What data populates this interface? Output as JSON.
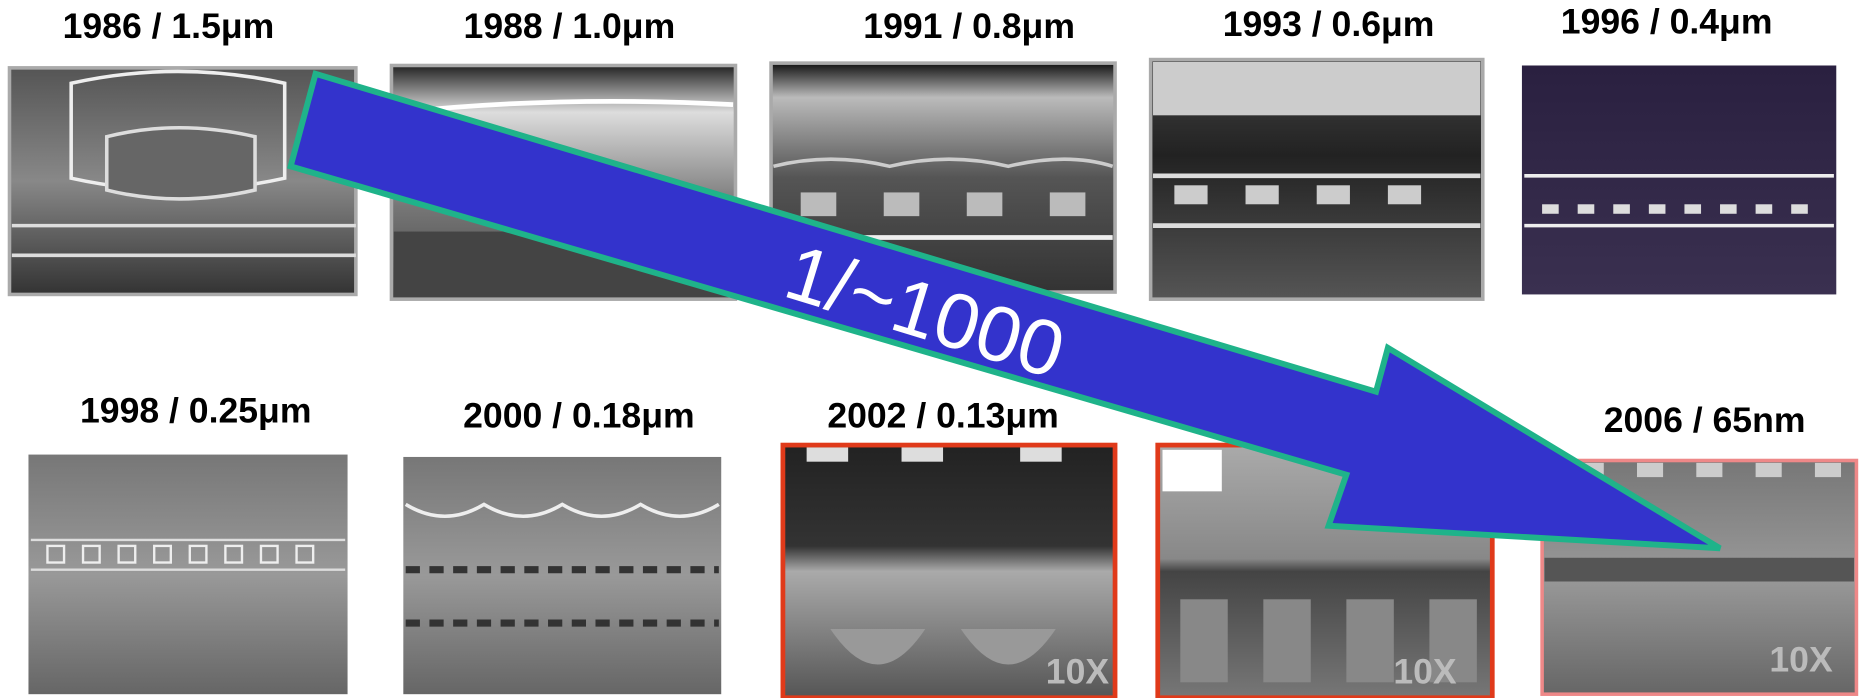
{
  "panels": [
    {
      "label": "1986 / 1.5μm"
    },
    {
      "label": "1988 / 1.0μm"
    },
    {
      "label": "1991 / 0.8μm"
    },
    {
      "label": "1993 / 0.6μm"
    },
    {
      "label": "1996 / 0.4μm"
    },
    {
      "label": "1998 / 0.25μm"
    },
    {
      "label": "2000 / 0.18μm"
    },
    {
      "label": "2002 / 0.13μm",
      "zoom": "10X"
    },
    {
      "zoom": "10X"
    },
    {
      "label": "2006 / 65nm",
      "zoom": "10X"
    }
  ],
  "arrow": {
    "label": "1/~1000"
  }
}
